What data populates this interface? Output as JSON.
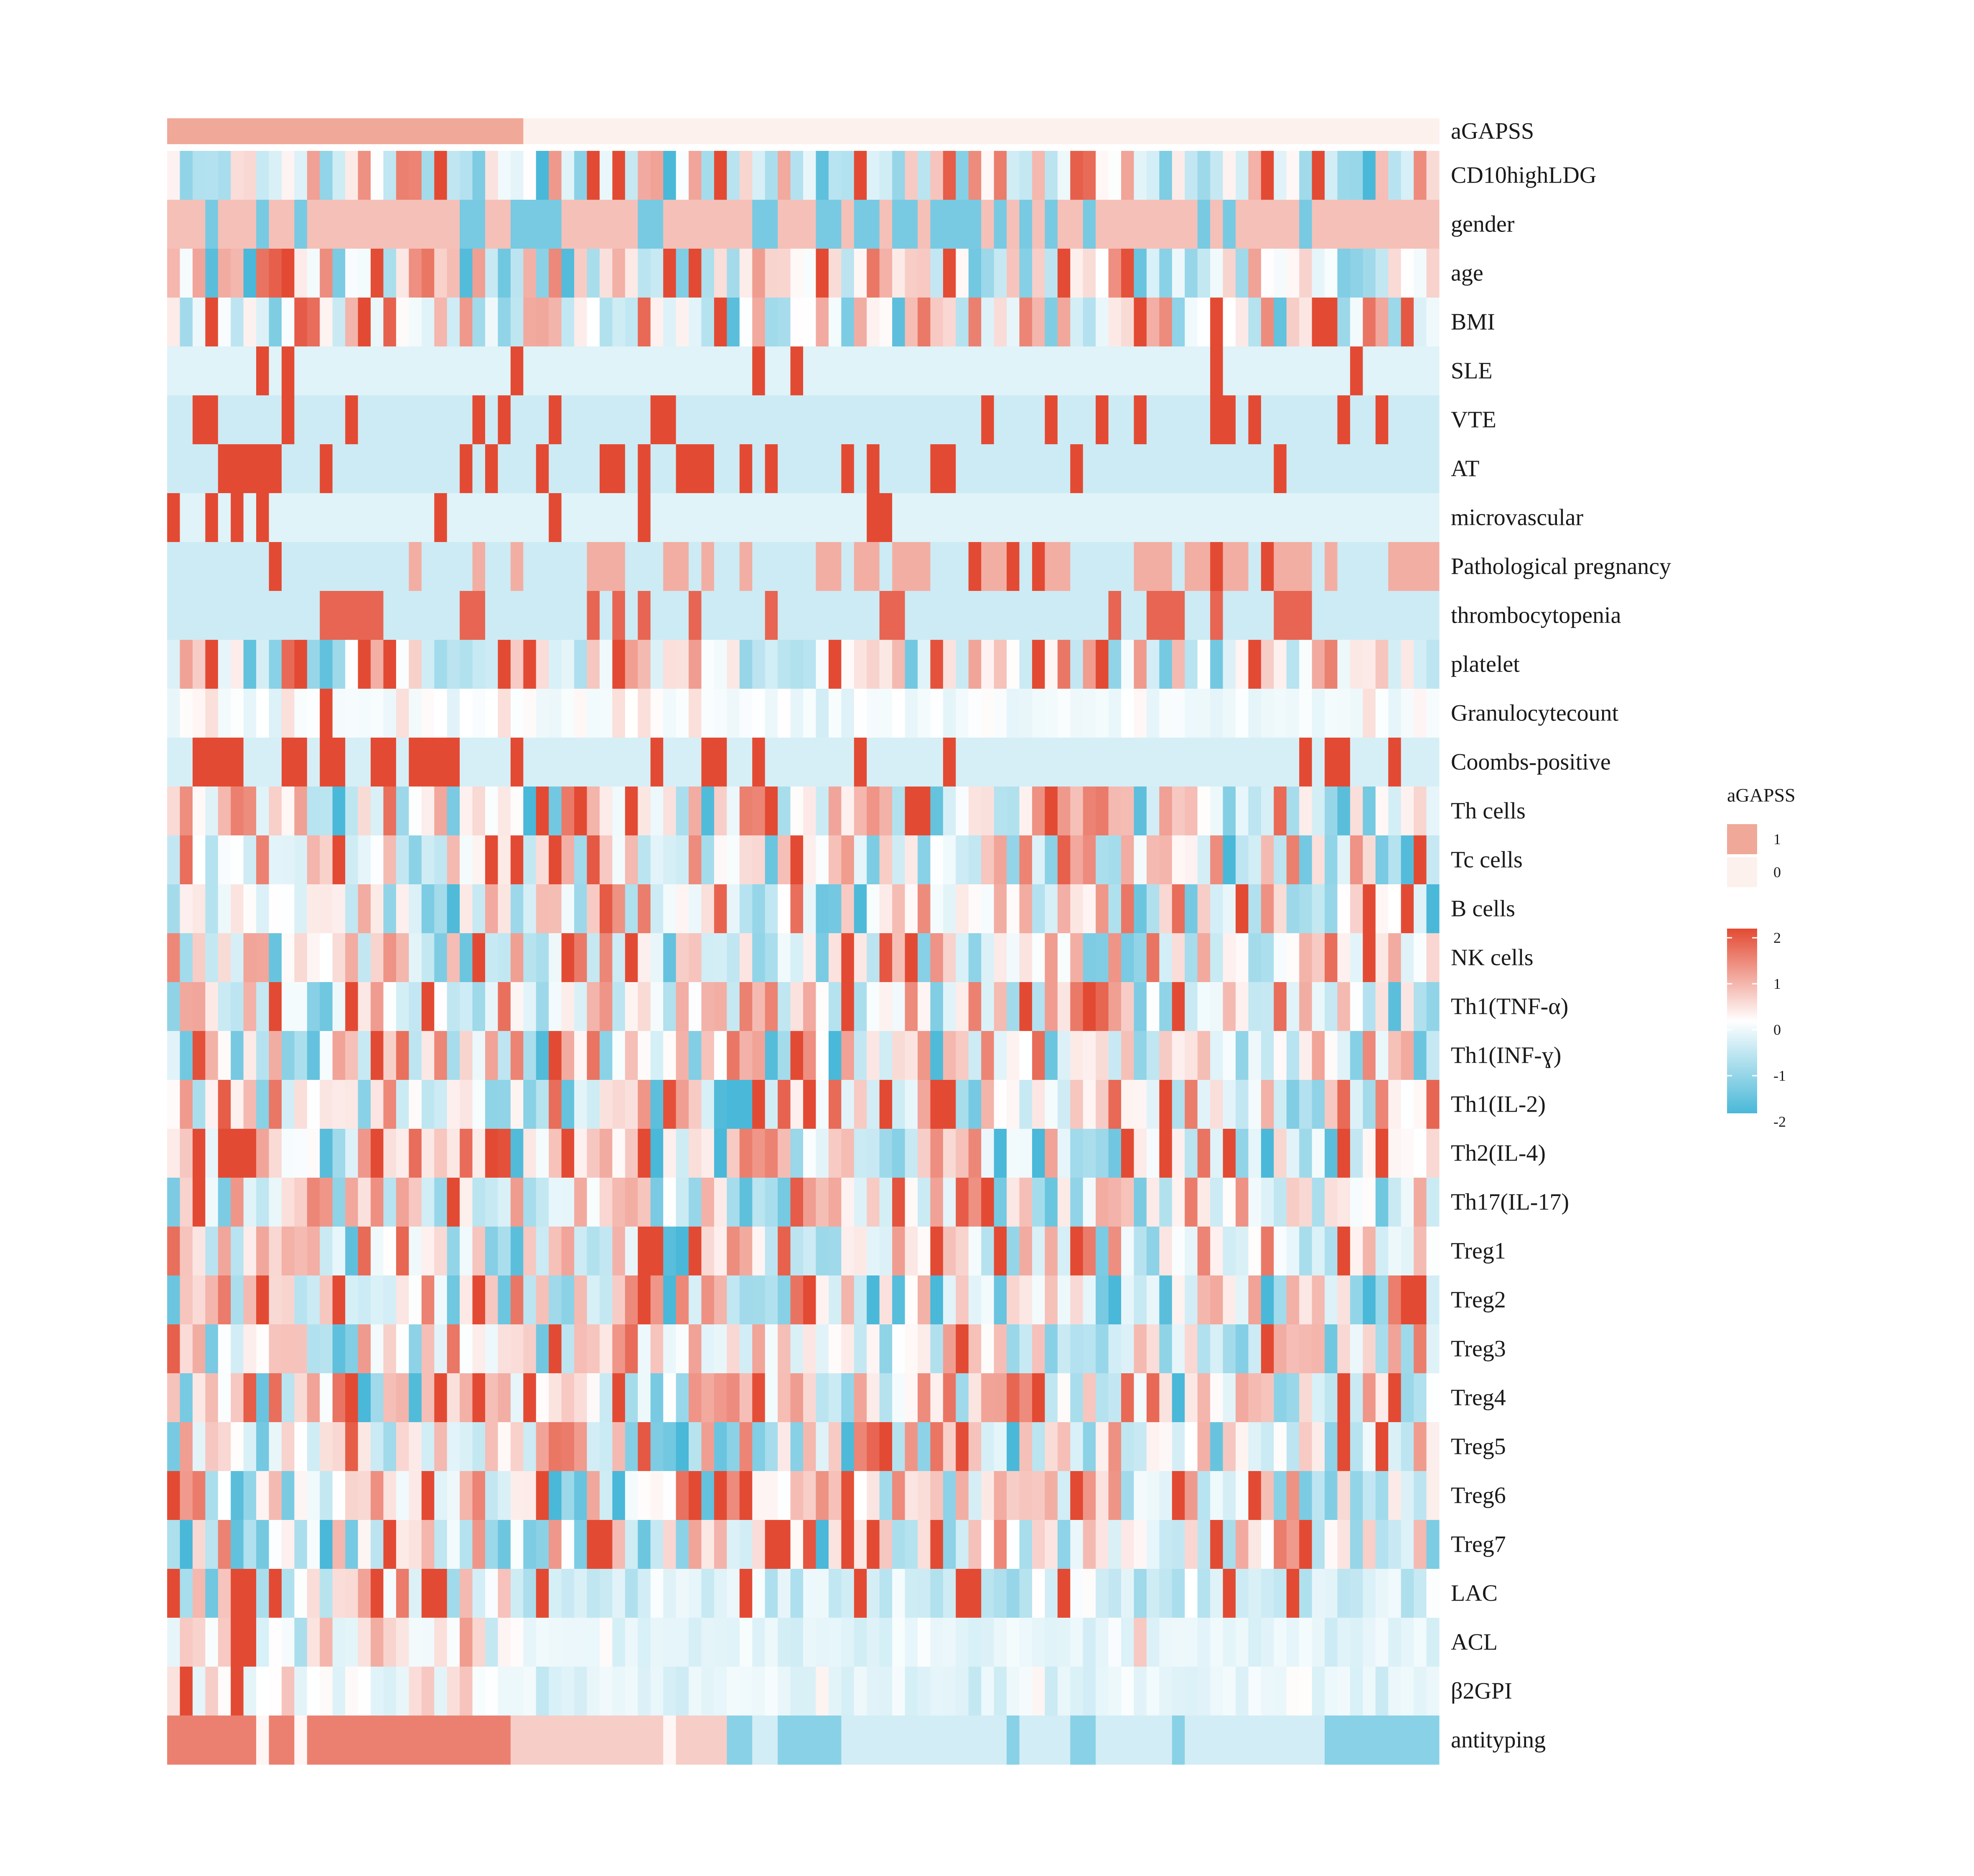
{
  "chart_data": {
    "type": "heatmap",
    "n_columns": 100,
    "top_annotation": {
      "name": "aGAPSS",
      "legend_title": "aGAPSS",
      "levels": [
        "1",
        "0"
      ],
      "colors": {
        "1": "#f0a898",
        "0": "#fdf1ee"
      },
      "values_summary": "first 28 columns = 1, remaining 72 columns = 0"
    },
    "rows": [
      {
        "key": "CD10highLDG",
        "label": "CD10highLDG"
      },
      {
        "key": "gender",
        "label": "gender"
      },
      {
        "key": "age",
        "label": "age"
      },
      {
        "key": "BMI",
        "label": "BMI"
      },
      {
        "key": "SLE",
        "label": "SLE"
      },
      {
        "key": "VTE",
        "label": "VTE"
      },
      {
        "key": "AT",
        "label": "AT"
      },
      {
        "key": "microvascular",
        "label": "microvascular"
      },
      {
        "key": "Pathological_pregnancy",
        "label": "Pathological pregnancy"
      },
      {
        "key": "thrombocytopenia",
        "label": "thrombocytopenia"
      },
      {
        "key": "platelet",
        "label": "platelet"
      },
      {
        "key": "Granulocytecount",
        "label": "Granulocytecount"
      },
      {
        "key": "Coombs_positive",
        "label": "Coombs-positive"
      },
      {
        "key": "Th_cells",
        "label": "Th cells"
      },
      {
        "key": "Tc_cells",
        "label": "Tc cells"
      },
      {
        "key": "B_cells",
        "label": "B cells"
      },
      {
        "key": "NK_cells",
        "label": "NK cells"
      },
      {
        "key": "Th1_TNF",
        "label": "Th1(TNF-α)"
      },
      {
        "key": "Th1_INF",
        "label": "Th1(INF-ɣ)"
      },
      {
        "key": "Th1_IL2",
        "label": "Th1(IL-2)"
      },
      {
        "key": "Th2_IL4",
        "label": "Th2(IL-4)"
      },
      {
        "key": "Th17_IL17",
        "label": "Th17(IL-17)"
      },
      {
        "key": "Treg1",
        "label": "Treg1"
      },
      {
        "key": "Treg2",
        "label": "Treg2"
      },
      {
        "key": "Treg3",
        "label": "Treg3"
      },
      {
        "key": "Treg4",
        "label": "Treg4"
      },
      {
        "key": "Treg5",
        "label": "Treg5"
      },
      {
        "key": "Treg6",
        "label": "Treg6"
      },
      {
        "key": "Treg7",
        "label": "Treg7"
      },
      {
        "key": "LAC",
        "label": "LAC"
      },
      {
        "key": "ACL",
        "label": "ACL"
      },
      {
        "key": "b2GPI",
        "label": "β2GPI"
      },
      {
        "key": "antityping",
        "label": "antityping"
      }
    ],
    "color_scale": {
      "legend_ticks": [
        "2",
        "1",
        "0",
        "-1",
        "-2"
      ],
      "range": [
        -2,
        2
      ],
      "low_color": "#4ab8d8",
      "mid_color": "#ffffff",
      "high_color": "#e34a33"
    },
    "note": "Cell values are standardized z-scores estimated from the image; per-row patterns are represented as segment lists."
  }
}
